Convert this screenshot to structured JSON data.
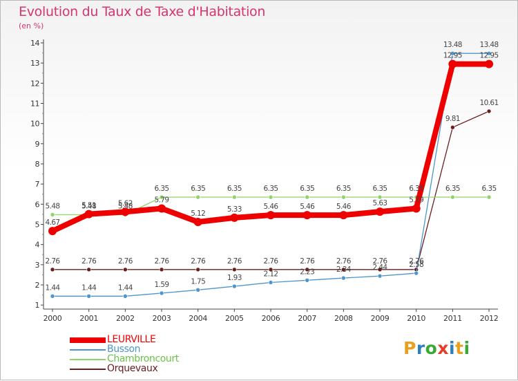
{
  "header": {
    "title": "Evolution du Taux de Taxe d'Habitation",
    "subtitle": "(en %)"
  },
  "logo": {
    "text": "Proxiti",
    "colors": [
      "#e8a020",
      "#2f7fc0",
      "#39a935",
      "#e63c2a",
      "#2f7fc0",
      "#e8a020",
      "#39a935"
    ]
  },
  "chart_data": {
    "type": "line",
    "title": "Evolution du Taux de Taxe d'Habitation",
    "subtitle": "(en %)",
    "xlabel": "",
    "ylabel": "(en %)",
    "categories": [
      "2000",
      "2001",
      "2002",
      "2003",
      "2004",
      "2005",
      "2006",
      "2007",
      "2008",
      "2009",
      "2010",
      "2011",
      "2012"
    ],
    "ylim": [
      0.8,
      14
    ],
    "yticks": [
      1,
      2,
      3,
      4,
      5,
      6,
      7,
      8,
      9,
      10,
      11,
      12,
      13,
      14
    ],
    "grid": false,
    "legend_position": "bottom-left",
    "series": [
      {
        "name": "LEURVILLE",
        "color": "#ee0000",
        "values": [
          4.67,
          5.51,
          5.62,
          5.79,
          5.12,
          5.33,
          5.46,
          5.46,
          5.46,
          5.63,
          5.79,
          12.95,
          12.95
        ],
        "labels": [
          "4.67",
          "5.51",
          "5.62",
          "5.79",
          "5.12",
          "5.33",
          "5.46",
          "5.46",
          "5.46",
          "5.63",
          "5.79",
          "12.95",
          "12.95"
        ]
      },
      {
        "name": "Busson",
        "color": "#4d95cc",
        "values": [
          1.44,
          1.44,
          1.44,
          1.59,
          1.75,
          1.93,
          2.12,
          2.23,
          2.34,
          2.44,
          2.58,
          13.48,
          13.48
        ],
        "labels": [
          "1.44",
          "1.44",
          "1.44",
          "1.59",
          "1.75",
          "1.93",
          "2.12",
          "2.23",
          "2.34",
          "2.44",
          "2.58",
          "13.48",
          "13.48"
        ]
      },
      {
        "name": "Chambroncourt",
        "color": "#8fd46a",
        "values": [
          5.48,
          5.48,
          5.48,
          6.35,
          6.35,
          6.35,
          6.35,
          6.35,
          6.35,
          6.35,
          6.35,
          6.35,
          6.35
        ],
        "labels": [
          "5.48",
          "5.48",
          "5.48",
          "6.35",
          "6.35",
          "6.35",
          "6.35",
          "6.35",
          "6.35",
          "6.35",
          "6.35",
          "6.35",
          "6.35"
        ]
      },
      {
        "name": "Orquevaux",
        "color": "#6b1e1e",
        "values": [
          2.76,
          2.76,
          2.76,
          2.76,
          2.76,
          2.76,
          2.76,
          2.76,
          2.76,
          2.76,
          2.76,
          9.81,
          10.61
        ],
        "labels": [
          "2.76",
          "2.76",
          "2.76",
          "2.76",
          "2.76",
          "2.76",
          "2.76",
          "2.76",
          "2.76",
          "2.76",
          "2.76",
          "9.81",
          "10.61"
        ]
      }
    ]
  }
}
